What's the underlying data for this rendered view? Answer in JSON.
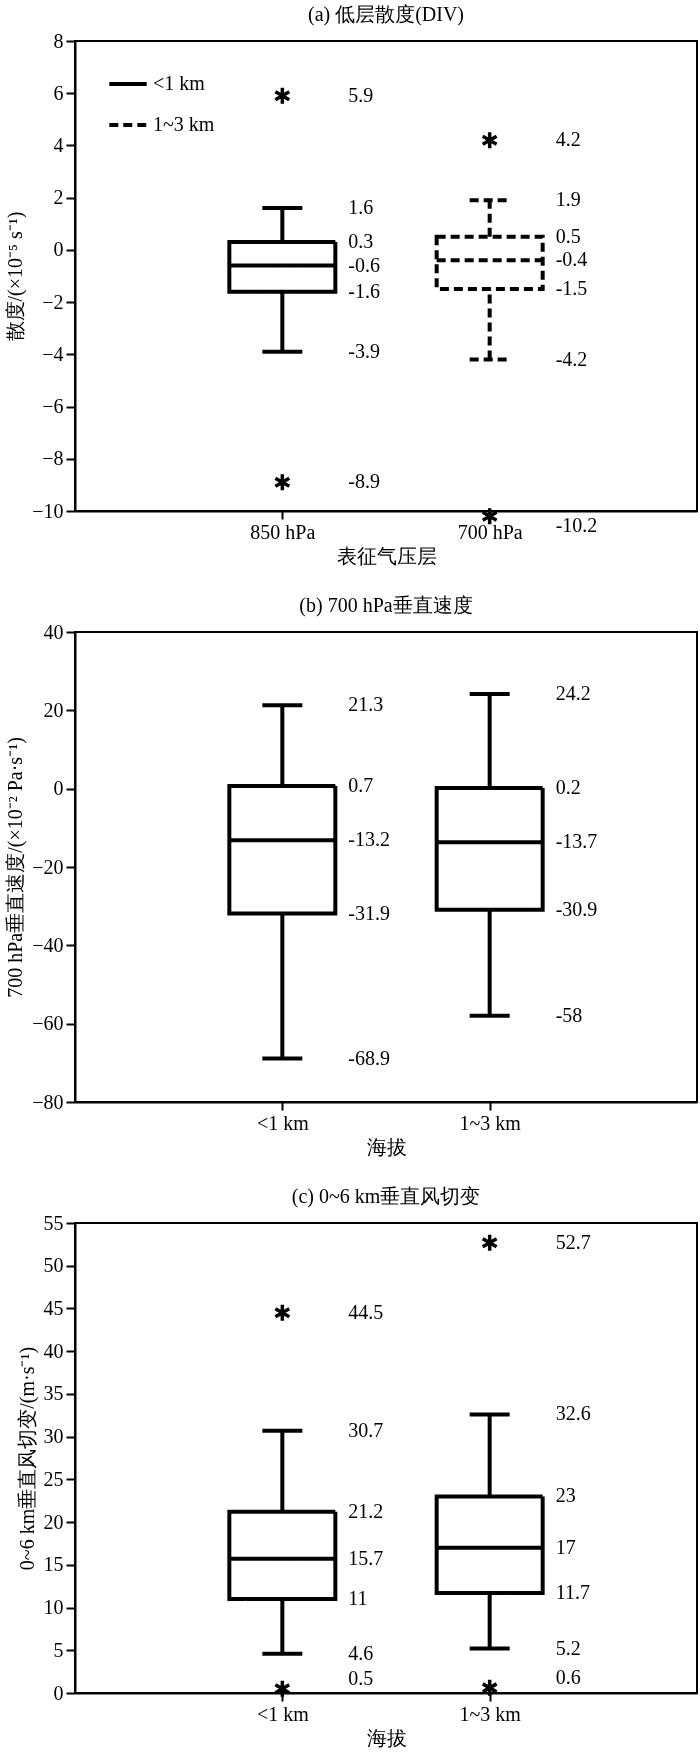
{
  "chart_data": [
    {
      "type": "box",
      "title": "(a) 低层散度(DIV)",
      "xlabel": "表征气压层",
      "ylabel": "散度/(×10⁻⁵ s⁻¹)",
      "categories": [
        "850 hPa",
        "700 hPa"
      ],
      "series": [
        {
          "name": "<1 km",
          "color": "#000000",
          "line_style": "solid",
          "boxes": [
            {
              "low": -3.9,
              "q1": -1.6,
              "median": -0.6,
              "q3": 0.3,
              "high": 1.6,
              "outliers": [
                5.9,
                -8.9
              ]
            },
            null
          ]
        },
        {
          "name": "1~3 km",
          "color": "#000000",
          "line_style": "dashed",
          "boxes": [
            null,
            {
              "low": -4.2,
              "q1": -1.5,
              "median": -0.4,
              "q3": 0.5,
              "high": 1.9,
              "outliers": [
                4.2,
                -10.2
              ]
            }
          ]
        }
      ],
      "ylim": [
        -10,
        8
      ],
      "yticks": [
        -10,
        -8,
        -6,
        -4,
        -2,
        0,
        2,
        4,
        6,
        8
      ],
      "legend": "top left",
      "marker": "star",
      "annotations": [
        "1.6",
        "0.3",
        "-0.6",
        "-1.6",
        "-3.9",
        "5.9",
        "-8.9",
        "1.9",
        "0.5",
        "-0.4",
        "-1.5",
        "-4.2",
        "4.2",
        "-10.2"
      ]
    },
    {
      "type": "box",
      "title": "(b) 700 hPa垂直速度",
      "xlabel": "海拔",
      "ylabel": "700 hPa垂直速度/(×10⁻² Pa·s⁻¹)",
      "categories": [
        "<1 km",
        "1~3 km"
      ],
      "color": "#000000",
      "boxes": [
        {
          "low": -68.9,
          "q1": -31.9,
          "median": -13.2,
          "q3": 0.7,
          "high": 21.3
        },
        {
          "low": -58,
          "q1": -30.9,
          "median": -13.7,
          "q3": 0.2,
          "high": 24.2
        }
      ],
      "ylim": [
        -80,
        40
      ],
      "yticks": [
        -80,
        -60,
        -40,
        -20,
        0,
        20,
        40
      ],
      "annotations": [
        "21.3",
        "0.7",
        "-13.2",
        "-31.9",
        "-68.9",
        "24.2",
        "0.2",
        "-13.7",
        "-30.9",
        "-58"
      ]
    },
    {
      "type": "box",
      "title": "(c) 0~6 km垂直风切变",
      "xlabel": "海拔",
      "ylabel": "0~6 km垂直风切变/(m·s⁻¹)",
      "categories": [
        "<1 km",
        "1~3 km"
      ],
      "color": "#000000",
      "boxes": [
        {
          "low": 4.6,
          "q1": 11,
          "median": 15.7,
          "q3": 21.2,
          "high": 30.7,
          "outliers": [
            44.5,
            0.5
          ]
        },
        {
          "low": 5.2,
          "q1": 11.7,
          "median": 17,
          "q3": 23,
          "high": 32.6,
          "outliers": [
            52.7,
            0.6
          ]
        }
      ],
      "ylim": [
        0,
        55
      ],
      "yticks": [
        0,
        5,
        10,
        15,
        20,
        25,
        30,
        35,
        40,
        45,
        50,
        55
      ],
      "marker": "star",
      "annotations": [
        "30.7",
        "21.2",
        "15.7",
        "11",
        "4.6",
        "44.5",
        "0.5",
        "32.6",
        "23",
        "17",
        "11.7",
        "5.2",
        "52.7",
        "0.6"
      ]
    }
  ]
}
